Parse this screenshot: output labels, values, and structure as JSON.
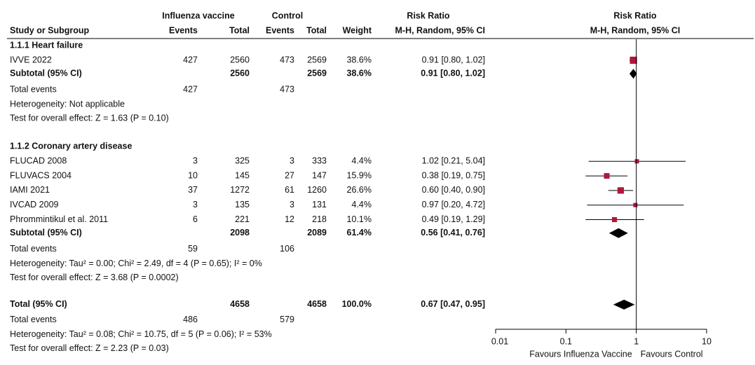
{
  "chart_data": {
    "type": "forest",
    "headers": {
      "group1": "Influenza vaccine",
      "group2": "Control",
      "rr": "Risk Ratio",
      "rr_plot": "Risk Ratio",
      "study": "Study or Subgroup",
      "events1": "Events",
      "total1": "Total",
      "events2": "Events",
      "total2": "Total",
      "weight": "Weight",
      "method": "M-H, Random, 95% CI",
      "method_plot": "M-H, Random, 95% CI"
    },
    "groups": [
      {
        "title": "1.1.1 Heart failure",
        "studies": [
          {
            "name": "IVVE 2022",
            "events1": 427,
            "total1": 2560,
            "events2": 473,
            "total2": 2569,
            "weight": 38.6,
            "weight_label": "38.6%",
            "ci": "0.91 [0.80, 1.02]",
            "rr": 0.91,
            "lo": 0.8,
            "hi": 1.02
          }
        ],
        "subtotal": {
          "name": "Subtotal (95% CI)",
          "total1": 2560,
          "total2": 2569,
          "weight_label": "38.6%",
          "ci": "0.91 [0.80, 1.02]",
          "rr": 0.91,
          "lo": 0.8,
          "hi": 1.02
        },
        "total_events": {
          "name": "Total events",
          "events1": 427,
          "events2": 473
        },
        "heterogeneity": "Heterogeneity: Not applicable",
        "test": "Test for overall effect: Z = 1.63 (P = 0.10)"
      },
      {
        "title": "1.1.2 Coronary artery disease",
        "studies": [
          {
            "name": "FLUCAD 2008",
            "events1": 3,
            "total1": 325,
            "events2": 3,
            "total2": 333,
            "weight": 4.4,
            "weight_label": "4.4%",
            "ci": "1.02 [0.21, 5.04]",
            "rr": 1.02,
            "lo": 0.21,
            "hi": 5.04
          },
          {
            "name": "FLUVACS 2004",
            "events1": 10,
            "total1": 145,
            "events2": 27,
            "total2": 147,
            "weight": 15.9,
            "weight_label": "15.9%",
            "ci": "0.38 [0.19, 0.75]",
            "rr": 0.38,
            "lo": 0.19,
            "hi": 0.75
          },
          {
            "name": "IAMI 2021",
            "events1": 37,
            "total1": 1272,
            "events2": 61,
            "total2": 1260,
            "weight": 26.6,
            "weight_label": "26.6%",
            "ci": "0.60 [0.40, 0.90]",
            "rr": 0.6,
            "lo": 0.4,
            "hi": 0.9
          },
          {
            "name": "IVCAD 2009",
            "events1": 3,
            "total1": 135,
            "events2": 3,
            "total2": 131,
            "weight": 4.4,
            "weight_label": "4.4%",
            "ci": "0.97 [0.20, 4.72]",
            "rr": 0.97,
            "lo": 0.2,
            "hi": 4.72
          },
          {
            "name": "Phrommintikul et al. 2011",
            "events1": 6,
            "total1": 221,
            "events2": 12,
            "total2": 218,
            "weight": 10.1,
            "weight_label": "10.1%",
            "ci": "0.49 [0.19, 1.29]",
            "rr": 0.49,
            "lo": 0.19,
            "hi": 1.29
          }
        ],
        "subtotal": {
          "name": "Subtotal (95% CI)",
          "total1": 2098,
          "total2": 2089,
          "weight_label": "61.4%",
          "ci": "0.56 [0.41, 0.76]",
          "rr": 0.56,
          "lo": 0.41,
          "hi": 0.76
        },
        "total_events": {
          "name": "Total events",
          "events1": 59,
          "events2": 106
        },
        "heterogeneity": "Heterogeneity: Tau² = 0.00; Chi² = 2.49, df = 4 (P = 0.65); I² = 0%",
        "test": "Test for overall effect: Z = 3.68 (P = 0.0002)"
      }
    ],
    "overall": {
      "subtotal": {
        "name": "Total (95% CI)",
        "total1": 4658,
        "total2": 4658,
        "weight_label": "100.0%",
        "ci": "0.67 [0.47, 0.95]",
        "rr": 0.67,
        "lo": 0.47,
        "hi": 0.95
      },
      "total_events": {
        "name": "Total events",
        "events1": 486,
        "events2": 579
      },
      "heterogeneity": "Heterogeneity: Tau² = 0.08; Chi² = 10.75, df = 5 (P = 0.06); I² = 53%",
      "test": "Test for overall effect: Z = 2.23 (P = 0.03)"
    },
    "log_x": true,
    "xlim": [
      0.01,
      10
    ],
    "xticks": [
      0.01,
      0.1,
      1,
      10
    ],
    "favours_left": "Favours Influenza Vaccine",
    "favours_right": "Favours Control",
    "marker_color": "#b0173b",
    "diamond_color": "#000000"
  }
}
